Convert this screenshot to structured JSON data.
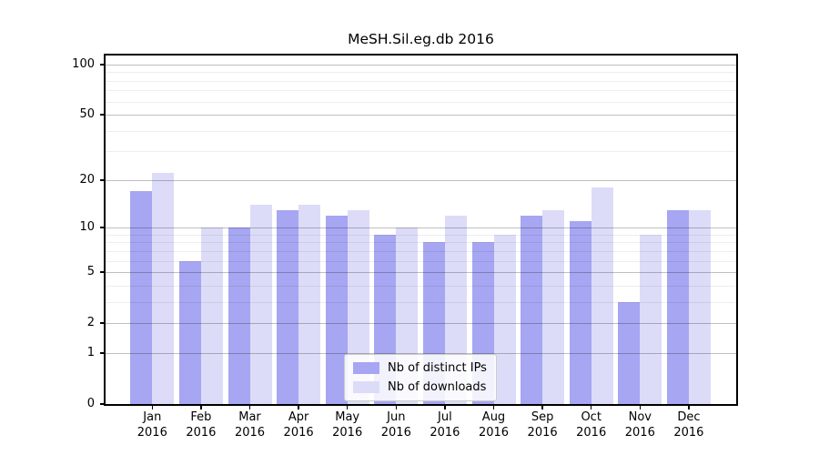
{
  "chart_data": {
    "type": "bar",
    "title": "MeSH.Sil.eg.db 2016",
    "categories": [
      "Jan",
      "Feb",
      "Mar",
      "Apr",
      "May",
      "Jun",
      "Jul",
      "Aug",
      "Sep",
      "Oct",
      "Nov",
      "Dec"
    ],
    "category_year": "2016",
    "series": [
      {
        "name": "Nb of distinct IPs",
        "color": "#a6a6f2",
        "values": [
          17,
          6,
          10,
          13,
          12,
          9,
          8,
          8,
          12,
          11,
          3,
          13
        ]
      },
      {
        "name": "Nb of downloads",
        "color": "#dcdcf8",
        "values": [
          22,
          10,
          14,
          14,
          13,
          10,
          12,
          9,
          13,
          18,
          9,
          13
        ]
      }
    ],
    "yscale": "log1p",
    "ylim": [
      0,
      113
    ],
    "y_major_ticks": [
      0,
      1,
      2,
      5,
      10,
      20,
      50,
      100
    ],
    "y_minor_gridlines": [
      3,
      4,
      6,
      7,
      8,
      9,
      30,
      40,
      60,
      70,
      80,
      90
    ],
    "grid": "on",
    "legend_position": "inside-bottom-center",
    "xlabel": "",
    "ylabel": ""
  },
  "legend": {
    "items": [
      {
        "label": "Nb of distinct IPs"
      },
      {
        "label": "Nb of downloads"
      }
    ]
  },
  "colors": {
    "ips_bar": "#a6a6f2",
    "downloads_bar": "#dcdcf8",
    "grid_major": "rgba(0,0,0,0.25)",
    "grid_minor": "rgba(0,0,0,0.07)",
    "axis": "#000000",
    "text": "#000000",
    "background": "#ffffff",
    "legend_border": "#cccccc",
    "legend_bg": "rgba(255,255,255,0.85)"
  }
}
